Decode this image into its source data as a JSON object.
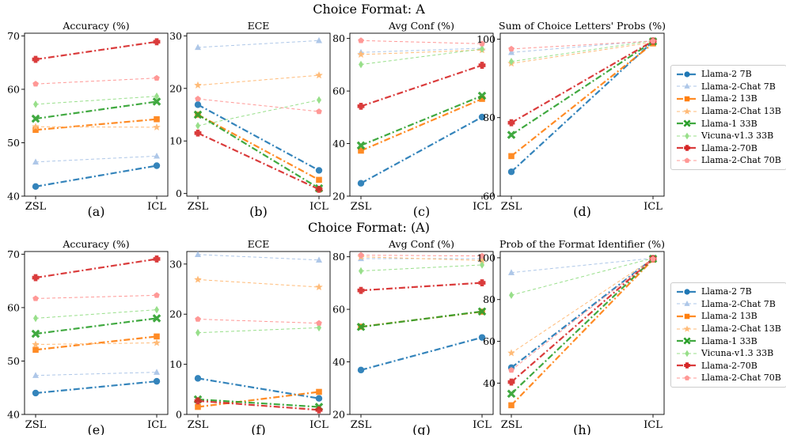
{
  "rows": [
    {
      "title": "Choice Format: A"
    },
    {
      "title": "Choice Format: (A)"
    }
  ],
  "legend": {
    "entries": [
      "Llama-2 7B",
      "Llama-2-Chat 7B",
      "Llama-2 13B",
      "Llama-2-Chat 13B",
      "Llama-1 33B",
      "Vicuna-v1.3 33B",
      "Llama-2-70B",
      "Llama-2-Chat 70B"
    ]
  },
  "series_style": [
    {
      "color": "#1f77b4",
      "marker": "circle",
      "dash": "dashdot",
      "width": 2.2,
      "opacity": 0.9
    },
    {
      "color": "#aec7e8",
      "marker": "triangle",
      "dash": "dash",
      "width": 1.0,
      "opacity": 1.0
    },
    {
      "color": "#ff7f0e",
      "marker": "square",
      "dash": "dashdot",
      "width": 2.2,
      "opacity": 0.9
    },
    {
      "color": "#ffbb78",
      "marker": "star",
      "dash": "dash",
      "width": 1.0,
      "opacity": 1.0
    },
    {
      "color": "#2ca02c",
      "marker": "x",
      "dash": "dashdot",
      "width": 2.2,
      "opacity": 0.9
    },
    {
      "color": "#98df8a",
      "marker": "diamond",
      "dash": "dash",
      "width": 1.0,
      "opacity": 1.0
    },
    {
      "color": "#d62728",
      "marker": "plus",
      "dash": "dashdot",
      "width": 2.2,
      "opacity": 0.9
    },
    {
      "color": "#ff9896",
      "marker": "pentagon",
      "dash": "dash",
      "width": 1.0,
      "opacity": 1.0
    }
  ],
  "chart_data": [
    {
      "type": "line",
      "row": 0,
      "col": 0,
      "title": "Accuracy (%)",
      "panel_label": "(a)",
      "categories": [
        "ZSL",
        "ICL"
      ],
      "ylim": [
        40,
        70.5
      ],
      "yticks": [
        40,
        50,
        60,
        70
      ],
      "series": [
        {
          "name": "Llama-2 7B",
          "values": [
            41.8,
            45.7
          ]
        },
        {
          "name": "Llama-2-Chat 7B",
          "values": [
            46.4,
            47.5
          ]
        },
        {
          "name": "Llama-2 13B",
          "values": [
            52.4,
            54.4
          ]
        },
        {
          "name": "Llama-2-Chat 13B",
          "values": [
            53.0,
            52.9
          ]
        },
        {
          "name": "Llama-1 33B",
          "values": [
            54.5,
            57.7
          ]
        },
        {
          "name": "Vicuna-v1.3 33B",
          "values": [
            57.2,
            58.7
          ]
        },
        {
          "name": "Llama-2-70B",
          "values": [
            65.6,
            68.9
          ]
        },
        {
          "name": "Llama-2-Chat 70B",
          "values": [
            61.0,
            62.1
          ]
        }
      ]
    },
    {
      "type": "line",
      "row": 0,
      "col": 1,
      "title": "ECE",
      "panel_label": "(b)",
      "categories": [
        "ZSL",
        "ICL"
      ],
      "ylim": [
        -0.5,
        30.5
      ],
      "yticks": [
        0,
        10,
        20,
        30
      ],
      "series": [
        {
          "name": "Llama-2 7B",
          "values": [
            16.9,
            4.4
          ]
        },
        {
          "name": "Llama-2-Chat 7B",
          "values": [
            27.8,
            29.1
          ]
        },
        {
          "name": "Llama-2 13B",
          "values": [
            15.0,
            2.6
          ]
        },
        {
          "name": "Llama-2-Chat 13B",
          "values": [
            20.6,
            22.5
          ]
        },
        {
          "name": "Llama-1 33B",
          "values": [
            15.0,
            1.0
          ]
        },
        {
          "name": "Vicuna-v1.3 33B",
          "values": [
            12.9,
            17.8
          ]
        },
        {
          "name": "Llama-2-70B",
          "values": [
            11.5,
            0.8
          ]
        },
        {
          "name": "Llama-2-Chat 70B",
          "values": [
            18.0,
            15.6
          ]
        }
      ]
    },
    {
      "type": "line",
      "row": 0,
      "col": 2,
      "title": "Avg Conf (%)",
      "panel_label": "(c)",
      "categories": [
        "ZSL",
        "ICL"
      ],
      "ylim": [
        20,
        82
      ],
      "yticks": [
        20,
        40,
        60,
        80
      ],
      "series": [
        {
          "name": "Llama-2 7B",
          "values": [
            24.9,
            50.1
          ]
        },
        {
          "name": "Llama-2-Chat 7B",
          "values": [
            74.7,
            76.3
          ]
        },
        {
          "name": "Llama-2 13B",
          "values": [
            37.3,
            57.0
          ]
        },
        {
          "name": "Llama-2-Chat 13B",
          "values": [
            73.9,
            75.6
          ]
        },
        {
          "name": "Llama-1 33B",
          "values": [
            39.3,
            58.2
          ]
        },
        {
          "name": "Vicuna-v1.3 33B",
          "values": [
            70.1,
            76.0
          ]
        },
        {
          "name": "Llama-2-70B",
          "values": [
            54.2,
            69.8
          ]
        },
        {
          "name": "Llama-2-Chat 70B",
          "values": [
            79.2,
            78.0
          ]
        }
      ]
    },
    {
      "type": "line",
      "row": 0,
      "col": 3,
      "title": "Sum of Choice Letters' Probs (%)",
      "panel_label": "(d)",
      "categories": [
        "ZSL",
        "ICL"
      ],
      "ylim": [
        60,
        101.5
      ],
      "yticks": [
        60,
        80,
        100
      ],
      "series": [
        {
          "name": "Llama-2 7B",
          "values": [
            66.2,
            99.4
          ]
        },
        {
          "name": "Llama-2-Chat 7B",
          "values": [
            96.6,
            99.6
          ]
        },
        {
          "name": "Llama-2 13B",
          "values": [
            70.2,
            98.9
          ]
        },
        {
          "name": "Llama-2-Chat 13B",
          "values": [
            93.8,
            99.2
          ]
        },
        {
          "name": "Llama-1 33B",
          "values": [
            75.6,
            99.4
          ]
        },
        {
          "name": "Vicuna-v1.3 33B",
          "values": [
            94.3,
            99.6
          ]
        },
        {
          "name": "Llama-2-70B",
          "values": [
            78.7,
            99.5
          ]
        },
        {
          "name": "Llama-2-Chat 70B",
          "values": [
            97.5,
            99.5
          ]
        }
      ]
    },
    {
      "type": "line",
      "row": 1,
      "col": 0,
      "title": "Accuracy (%)",
      "panel_label": "(e)",
      "categories": [
        "ZSL",
        "ICL"
      ],
      "ylim": [
        40,
        70.5
      ],
      "yticks": [
        40,
        50,
        60,
        70
      ],
      "series": [
        {
          "name": "Llama-2 7B",
          "values": [
            44.0,
            46.2
          ]
        },
        {
          "name": "Llama-2-Chat 7B",
          "values": [
            47.3,
            47.9
          ]
        },
        {
          "name": "Llama-2 13B",
          "values": [
            52.1,
            54.6
          ]
        },
        {
          "name": "Llama-2-Chat 13B",
          "values": [
            53.1,
            53.4
          ]
        },
        {
          "name": "Llama-1 33B",
          "values": [
            55.1,
            58.0
          ]
        },
        {
          "name": "Vicuna-v1.3 33B",
          "values": [
            58.0,
            59.6
          ]
        },
        {
          "name": "Llama-2-70B",
          "values": [
            65.6,
            69.1
          ]
        },
        {
          "name": "Llama-2-Chat 70B",
          "values": [
            61.7,
            62.3
          ]
        }
      ]
    },
    {
      "type": "line",
      "row": 1,
      "col": 1,
      "title": "ECE",
      "panel_label": "(f)",
      "categories": [
        "ZSL",
        "ICL"
      ],
      "ylim": [
        0,
        32.5
      ],
      "yticks": [
        0,
        10,
        20,
        30
      ],
      "series": [
        {
          "name": "Llama-2 7B",
          "values": [
            7.2,
            3.2
          ]
        },
        {
          "name": "Llama-2-Chat 7B",
          "values": [
            31.9,
            30.8
          ]
        },
        {
          "name": "Llama-2 13B",
          "values": [
            1.5,
            4.5
          ]
        },
        {
          "name": "Llama-2-Chat 13B",
          "values": [
            26.9,
            25.4
          ]
        },
        {
          "name": "Llama-1 33B",
          "values": [
            3.0,
            1.5
          ]
        },
        {
          "name": "Vicuna-v1.3 33B",
          "values": [
            16.3,
            17.3
          ]
        },
        {
          "name": "Llama-2-70B",
          "values": [
            2.7,
            0.9
          ]
        },
        {
          "name": "Llama-2-Chat 70B",
          "values": [
            19.0,
            18.2
          ]
        }
      ]
    },
    {
      "type": "line",
      "row": 1,
      "col": 2,
      "title": "Avg Conf (%)",
      "panel_label": "(g)",
      "categories": [
        "ZSL",
        "ICL"
      ],
      "ylim": [
        20,
        82
      ],
      "yticks": [
        20,
        40,
        60,
        80
      ],
      "series": [
        {
          "name": "Llama-2 7B",
          "values": [
            36.9,
            49.3
          ]
        },
        {
          "name": "Llama-2-Chat 7B",
          "values": [
            79.3,
            79.3
          ]
        },
        {
          "name": "Llama-2 13B",
          "values": [
            53.4,
            59.1
          ]
        },
        {
          "name": "Llama-2-Chat 13B",
          "values": [
            80.0,
            78.6
          ]
        },
        {
          "name": "Llama-1 33B",
          "values": [
            53.3,
            59.2
          ]
        },
        {
          "name": "Vicuna-v1.3 33B",
          "values": [
            74.6,
            76.9
          ]
        },
        {
          "name": "Llama-2-70B",
          "values": [
            67.2,
            70.1
          ]
        },
        {
          "name": "Llama-2-Chat 70B",
          "values": [
            80.6,
            80.3
          ]
        }
      ]
    },
    {
      "type": "line",
      "row": 1,
      "col": 3,
      "title": "Prob of the Format Identifier (%)",
      "panel_label": "(h)",
      "categories": [
        "ZSL",
        "ICL"
      ],
      "ylim": [
        25,
        103
      ],
      "yticks": [
        40,
        60,
        80,
        100
      ],
      "series": [
        {
          "name": "Llama-2 7B",
          "values": [
            47.4,
            99.6
          ]
        },
        {
          "name": "Llama-2-Chat 7B",
          "values": [
            92.9,
            99.8
          ]
        },
        {
          "name": "Llama-2 13B",
          "values": [
            29.4,
            99.2
          ]
        },
        {
          "name": "Llama-2-Chat 13B",
          "values": [
            54.4,
            99.6
          ]
        },
        {
          "name": "Llama-1 33B",
          "values": [
            34.9,
            99.5
          ]
        },
        {
          "name": "Vicuna-v1.3 33B",
          "values": [
            82.1,
            99.8
          ]
        },
        {
          "name": "Llama-2-70B",
          "values": [
            40.5,
            99.6
          ]
        },
        {
          "name": "Llama-2-Chat 70B",
          "values": [
            46.2,
            99.4
          ]
        }
      ]
    }
  ]
}
